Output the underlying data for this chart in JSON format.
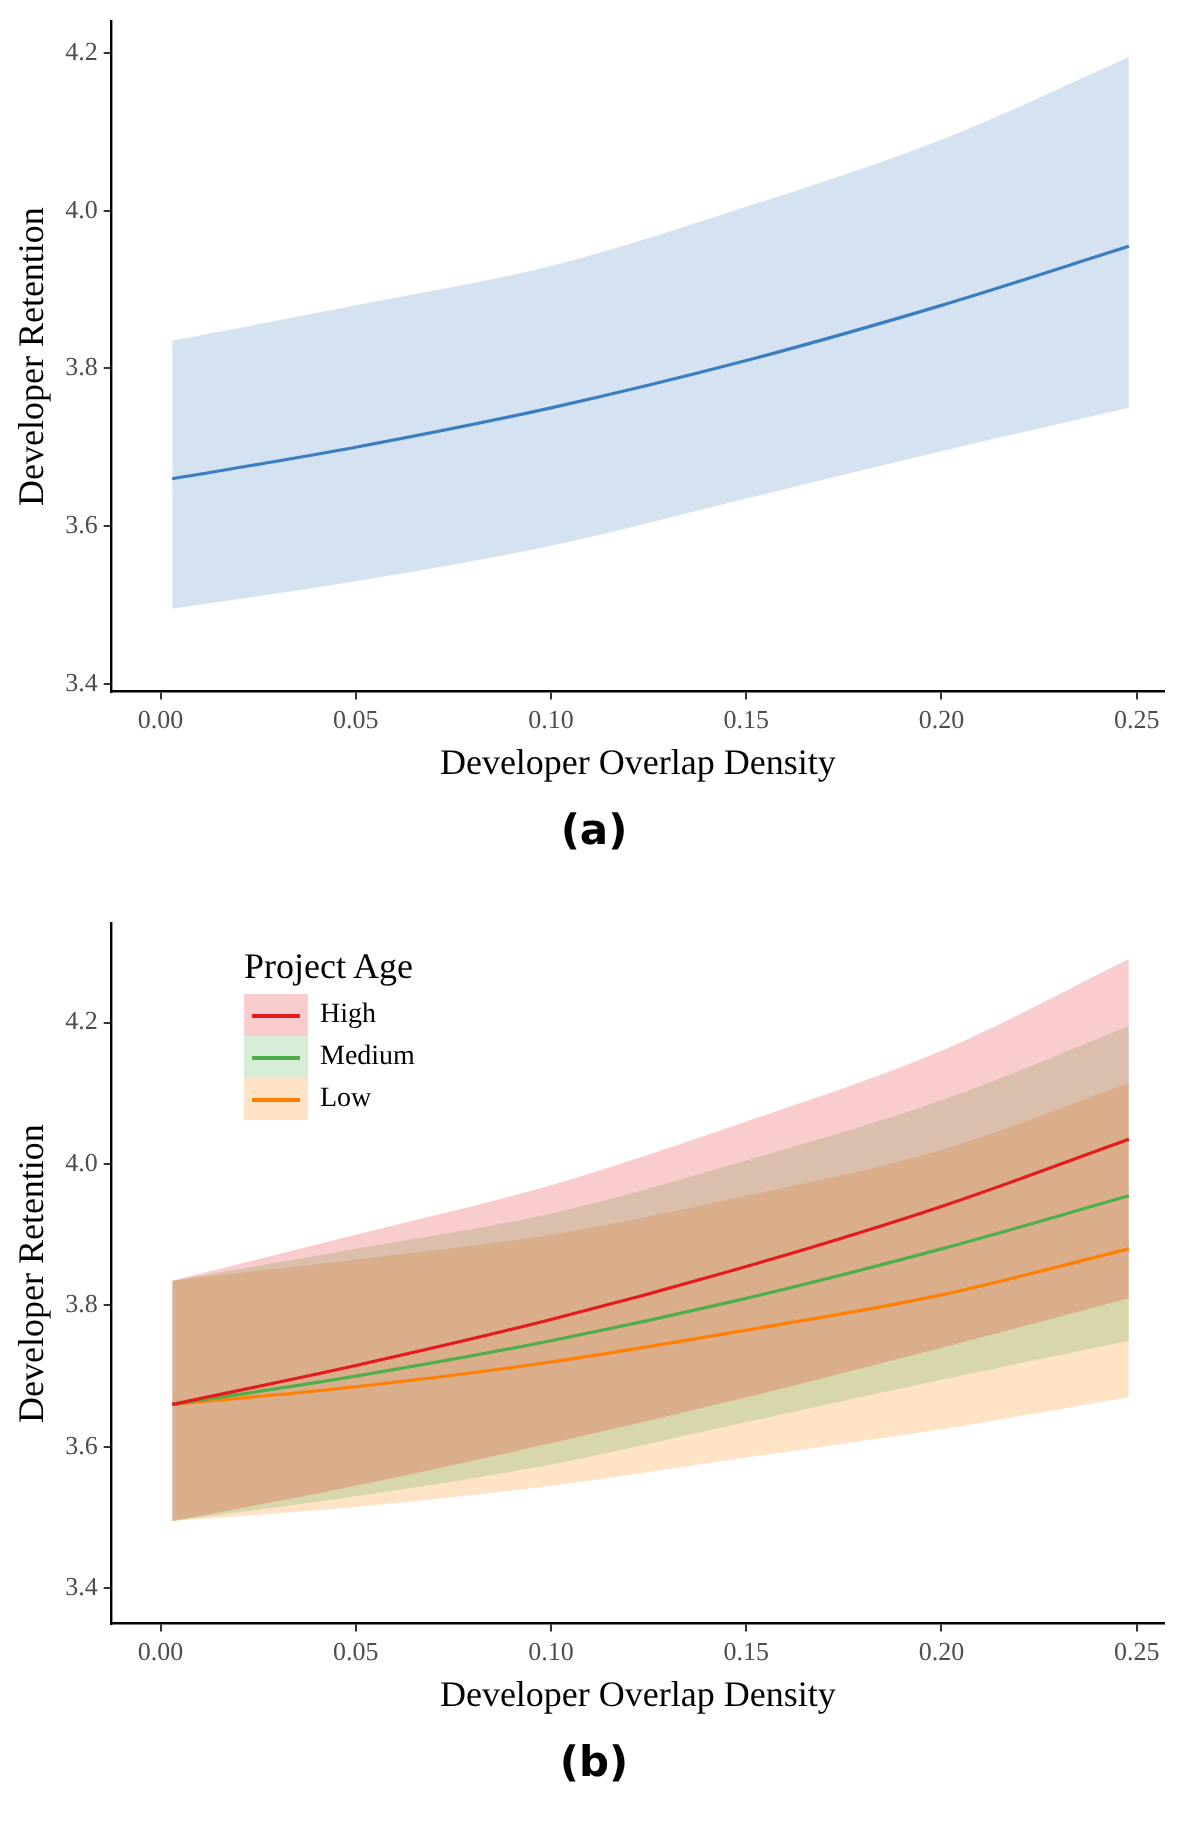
{
  "chart_data": [
    {
      "type": "line",
      "title": "(a)",
      "xlabel": "Developer Overlap Density",
      "ylabel": "Developer Retention",
      "x": [
        0.003,
        0.05,
        0.1,
        0.15,
        0.2,
        0.248
      ],
      "xlim": [
        -0.0125,
        0.257
      ],
      "xticks": [
        {
          "value": 0,
          "label": "0.00"
        },
        0.05,
        {
          "value": 0.1,
          "label": "0.10"
        },
        0.15,
        {
          "value": 0.2,
          "label": "0.20"
        },
        0.25
      ],
      "ylim": [
        3.39,
        4.24
      ],
      "yticks": [
        3.4,
        3.6,
        3.8,
        {
          "value": 4,
          "label": "4.0"
        },
        4.2
      ],
      "grid": false,
      "legend": false,
      "series": [
        {
          "color": "#3a7dc0",
          "values": [
            3.66,
            3.7,
            3.75,
            3.81,
            3.88,
            3.955
          ],
          "lower": [
            3.495,
            3.53,
            3.575,
            3.635,
            3.695,
            3.75
          ],
          "upper": [
            3.835,
            3.88,
            3.93,
            4.005,
            4.09,
            4.195
          ]
        }
      ]
    },
    {
      "type": "line",
      "title": "(b)",
      "xlabel": "Developer Overlap Density",
      "ylabel": "Developer Retention",
      "legend_title": "Project Age",
      "x": [
        0.003,
        0.05,
        0.1,
        0.15,
        0.2,
        0.248
      ],
      "xlim": [
        -0.0125,
        0.257
      ],
      "xticks": [
        {
          "value": 0,
          "label": "0.00"
        },
        0.05,
        {
          "value": 0.1,
          "label": "0.10"
        },
        0.15,
        {
          "value": 0.2,
          "label": "0.20"
        },
        0.25
      ],
      "ylim": [
        3.35,
        4.34
      ],
      "yticks": [
        3.4,
        3.6,
        3.8,
        {
          "value": 4,
          "label": "4.0"
        },
        4.2
      ],
      "grid": false,
      "legend": "top left",
      "series": [
        {
          "name": "High",
          "color": "#e41a1c",
          "values": [
            3.66,
            3.715,
            3.78,
            3.855,
            3.94,
            4.035
          ],
          "lower": [
            3.495,
            3.545,
            3.605,
            3.67,
            3.74,
            3.81
          ],
          "upper": [
            3.835,
            3.9,
            3.97,
            4.06,
            4.16,
            4.29
          ]
        },
        {
          "name": "Medium",
          "color": "#4daf4a",
          "values": [
            3.66,
            3.7,
            3.75,
            3.81,
            3.88,
            3.955
          ],
          "lower": [
            3.495,
            3.53,
            3.575,
            3.635,
            3.695,
            3.75
          ],
          "upper": [
            3.835,
            3.88,
            3.93,
            4.005,
            4.09,
            4.195
          ]
        },
        {
          "name": "Low",
          "color": "#ff7f00",
          "values": [
            3.66,
            3.685,
            3.72,
            3.765,
            3.815,
            3.88
          ],
          "lower": [
            3.495,
            3.515,
            3.545,
            3.585,
            3.625,
            3.67
          ],
          "upper": [
            3.835,
            3.865,
            3.9,
            3.955,
            4.02,
            4.115
          ]
        }
      ]
    }
  ]
}
